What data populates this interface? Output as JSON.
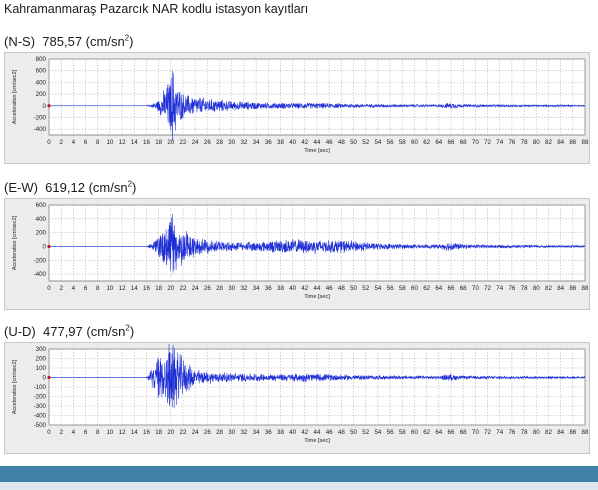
{
  "title": "Kahramanmaraş Pazarcık NAR kodlu istasyon kayıtları",
  "colors": {
    "trace": "#1f2fd6",
    "grid": "#b4b4b4",
    "panel": "#ececec",
    "plot_bg": "#ffffff",
    "bar": "#3f7fa8"
  },
  "chart_data": [
    {
      "type": "line",
      "component": "(N-S)",
      "peak_value": "785,57",
      "unit": "(cm/sn",
      "unit_sup": "2",
      "unit_close": ")",
      "ylabel": "Acceleration [cm/sec2]",
      "xlabel": "Time [sec]",
      "xlim": [
        0,
        88
      ],
      "ylim": [
        -500,
        800
      ],
      "x_ticks": [
        0,
        2,
        4,
        6,
        8,
        10,
        12,
        14,
        16,
        18,
        20,
        22,
        24,
        26,
        28,
        30,
        32,
        34,
        36,
        38,
        40,
        42,
        44,
        46,
        48,
        50,
        52,
        54,
        56,
        58,
        60,
        62,
        64,
        66,
        68,
        70,
        72,
        74,
        76,
        78,
        80,
        82,
        84,
        86,
        88
      ],
      "y_ticks": [
        800,
        600,
        400,
        200,
        0,
        -200,
        -400
      ],
      "grid": true,
      "envelope": [
        [
          0,
          2
        ],
        [
          16,
          2
        ],
        [
          17,
          40
        ],
        [
          18,
          120
        ],
        [
          19,
          320
        ],
        [
          20,
          560
        ],
        [
          20.3,
          785
        ],
        [
          21,
          380
        ],
        [
          22,
          240
        ],
        [
          23,
          200
        ],
        [
          24,
          180
        ],
        [
          26,
          140
        ],
        [
          28,
          120
        ],
        [
          30,
          90
        ],
        [
          32,
          80
        ],
        [
          34,
          70
        ],
        [
          36,
          60
        ],
        [
          38,
          60
        ],
        [
          40,
          55
        ],
        [
          42,
          60
        ],
        [
          44,
          55
        ],
        [
          46,
          50
        ],
        [
          48,
          45
        ],
        [
          50,
          40
        ],
        [
          52,
          35
        ],
        [
          56,
          30
        ],
        [
          60,
          28
        ],
        [
          62,
          25
        ],
        [
          64,
          25
        ],
        [
          65,
          45
        ],
        [
          66,
          60
        ],
        [
          67,
          45
        ],
        [
          68,
          30
        ],
        [
          72,
          25
        ],
        [
          76,
          22
        ],
        [
          80,
          20
        ],
        [
          84,
          18
        ],
        [
          88,
          15
        ]
      ]
    },
    {
      "type": "line",
      "component": "(E-W)",
      "peak_value": "619,12",
      "unit": "(cm/sn",
      "unit_sup": "2",
      "unit_close": ")",
      "ylabel": "Acceleration [cm/sec2]",
      "xlabel": "Time [sec]",
      "xlim": [
        0,
        88
      ],
      "ylim": [
        -500,
        600
      ],
      "x_ticks": [
        0,
        2,
        4,
        6,
        8,
        10,
        12,
        14,
        16,
        18,
        20,
        22,
        24,
        26,
        28,
        30,
        32,
        34,
        36,
        38,
        40,
        42,
        44,
        46,
        48,
        50,
        52,
        54,
        56,
        58,
        60,
        62,
        64,
        66,
        68,
        70,
        72,
        74,
        76,
        78,
        80,
        82,
        84,
        86,
        88
      ],
      "y_ticks": [
        600,
        400,
        200,
        0,
        -200,
        -400
      ],
      "grid": true,
      "envelope": [
        [
          0,
          2
        ],
        [
          16,
          2
        ],
        [
          17,
          60
        ],
        [
          18,
          200
        ],
        [
          19,
          320
        ],
        [
          20,
          420
        ],
        [
          20.3,
          619
        ],
        [
          21,
          350
        ],
        [
          22,
          280
        ],
        [
          23,
          220
        ],
        [
          24,
          150
        ],
        [
          26,
          110
        ],
        [
          28,
          90
        ],
        [
          30,
          80
        ],
        [
          32,
          70
        ],
        [
          34,
          80
        ],
        [
          36,
          90
        ],
        [
          38,
          110
        ],
        [
          40,
          120
        ],
        [
          42,
          110
        ],
        [
          44,
          120
        ],
        [
          46,
          100
        ],
        [
          48,
          110
        ],
        [
          50,
          90
        ],
        [
          52,
          70
        ],
        [
          54,
          50
        ],
        [
          56,
          45
        ],
        [
          60,
          35
        ],
        [
          62,
          30
        ],
        [
          64,
          35
        ],
        [
          65,
          60
        ],
        [
          66,
          80
        ],
        [
          67,
          55
        ],
        [
          68,
          35
        ],
        [
          72,
          30
        ],
        [
          76,
          25
        ],
        [
          80,
          22
        ],
        [
          84,
          20
        ],
        [
          88,
          15
        ]
      ]
    },
    {
      "type": "line",
      "component": "(U-D)",
      "peak_value": "477,97",
      "unit": "(cm/sn",
      "unit_sup": "2",
      "unit_close": ")",
      "ylabel": "Acceleration [cm/sec2]",
      "xlabel": "Time [sec]",
      "xlim": [
        0,
        88
      ],
      "ylim": [
        -500,
        300
      ],
      "x_ticks": [
        0,
        2,
        4,
        6,
        8,
        10,
        12,
        14,
        16,
        18,
        20,
        22,
        24,
        26,
        28,
        30,
        32,
        34,
        36,
        38,
        40,
        42,
        44,
        46,
        48,
        50,
        52,
        54,
        56,
        58,
        60,
        62,
        64,
        66,
        68,
        70,
        72,
        74,
        76,
        78,
        80,
        82,
        84,
        86,
        88
      ],
      "y_ticks": [
        300,
        200,
        100,
        0,
        -100,
        -200,
        -300,
        -400,
        -500
      ],
      "grid": true,
      "envelope": [
        [
          0,
          2
        ],
        [
          16,
          2
        ],
        [
          17,
          120
        ],
        [
          18,
          260
        ],
        [
          19,
          300
        ],
        [
          20,
          440
        ],
        [
          20.2,
          478
        ],
        [
          21,
          320
        ],
        [
          22,
          220
        ],
        [
          23,
          150
        ],
        [
          24,
          100
        ],
        [
          26,
          70
        ],
        [
          28,
          60
        ],
        [
          30,
          55
        ],
        [
          32,
          50
        ],
        [
          34,
          45
        ],
        [
          36,
          40
        ],
        [
          38,
          40
        ],
        [
          40,
          45
        ],
        [
          42,
          50
        ],
        [
          44,
          45
        ],
        [
          46,
          40
        ],
        [
          48,
          35
        ],
        [
          50,
          30
        ],
        [
          54,
          25
        ],
        [
          58,
          22
        ],
        [
          62,
          20
        ],
        [
          64,
          20
        ],
        [
          65,
          35
        ],
        [
          66,
          40
        ],
        [
          67,
          30
        ],
        [
          68,
          20
        ],
        [
          72,
          18
        ],
        [
          76,
          16
        ],
        [
          80,
          15
        ],
        [
          84,
          14
        ],
        [
          88,
          12
        ]
      ]
    }
  ]
}
